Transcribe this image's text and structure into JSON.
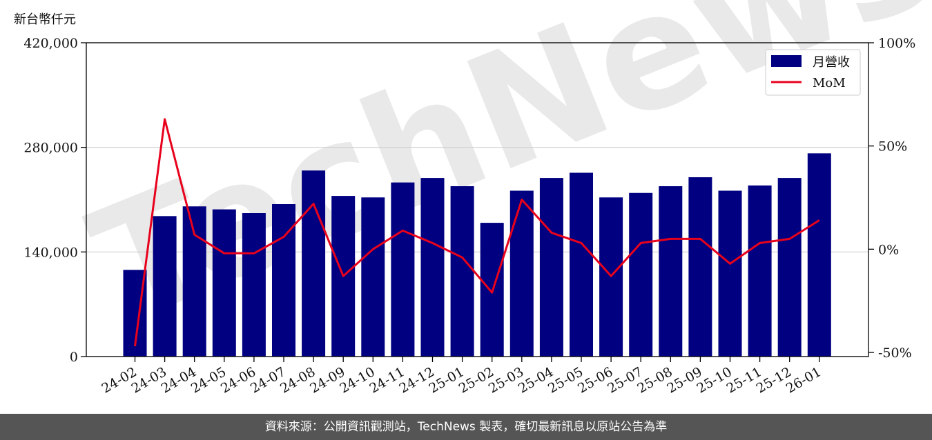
{
  "unit_label": "新台幣仟元",
  "footer_text": "資料來源：公開資訊觀測站，TechNews 製表，確切最新訊息以原站公告為準",
  "watermark_text": "TechNews",
  "colors": {
    "bar": "#000080",
    "line": "#e8001c",
    "footer_bg": "#555555"
  },
  "chart_data": {
    "type": "bar",
    "categories": [
      "24-02",
      "24-03",
      "24-04",
      "24-05",
      "24-06",
      "24-07",
      "24-08",
      "24-09",
      "24-10",
      "24-11",
      "24-12",
      "25-01",
      "25-02",
      "25-03",
      "25-04",
      "25-05",
      "25-06",
      "25-07",
      "25-08",
      "25-09",
      "25-10",
      "25-11",
      "25-12",
      "26-01"
    ],
    "series": [
      {
        "name": "月營收",
        "type": "bar",
        "axis": "left",
        "values": [
          116000,
          188000,
          201000,
          197000,
          192000,
          204000,
          249000,
          215000,
          213000,
          233000,
          239000,
          228000,
          179000,
          222000,
          239000,
          246000,
          213000,
          219000,
          228000,
          240000,
          222000,
          229000,
          239000,
          272000
        ]
      },
      {
        "name": "MoM",
        "type": "line",
        "axis": "right",
        "values": [
          -47,
          63,
          7,
          -2,
          -2,
          6,
          22,
          -13,
          0,
          9,
          3,
          -4,
          -21,
          24,
          8,
          3,
          -13,
          3,
          5,
          5,
          -7,
          3,
          5,
          14
        ]
      }
    ],
    "left_axis": {
      "ylim": [
        0,
        420000
      ],
      "ticks": [
        0,
        140000,
        280000,
        420000
      ],
      "tick_labels": [
        "0",
        "140,000",
        "280,000",
        "420,000"
      ]
    },
    "right_axis": {
      "ylim": [
        -52,
        100
      ],
      "ticks": [
        -50,
        0,
        50,
        100
      ],
      "tick_labels": [
        "-50%",
        "0%",
        "50%",
        "100%"
      ]
    },
    "grid": "horizontal",
    "legend": {
      "position": "top-right",
      "entries": [
        "月營收",
        "MoM"
      ]
    }
  }
}
